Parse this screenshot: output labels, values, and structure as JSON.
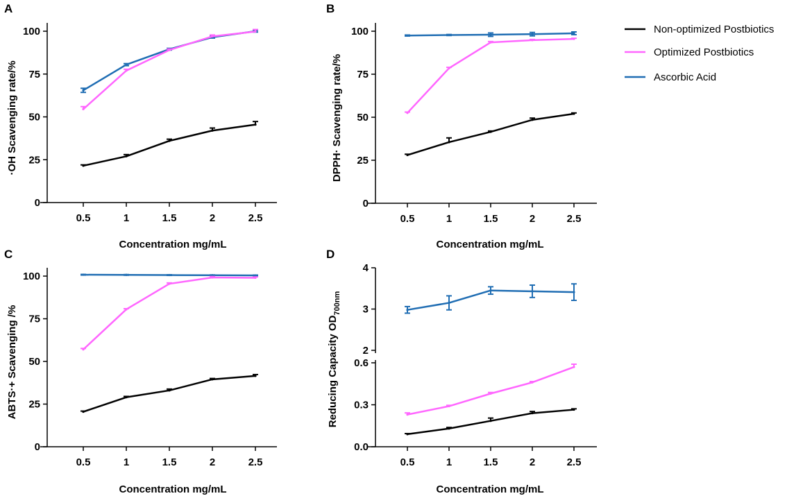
{
  "colors": {
    "non_optimized": "#000000",
    "optimized": "#ff66ff",
    "ascorbic": "#1f6db3",
    "axis": "#000000"
  },
  "legend": {
    "non_optimized": "Non-optimized Postbiotics",
    "optimized": "Optimized Postbiotics",
    "ascorbic": "Ascorbic Acid"
  },
  "chart_data": [
    {
      "panel": "A",
      "type": "line",
      "title": "",
      "xlabel": "Concentration mg/mL",
      "ylabel": "·OH Scavenging rate/%",
      "categories": [
        "0.5",
        "1",
        "1.5",
        "2",
        "2.5"
      ],
      "ylim": [
        0,
        100
      ],
      "yticks": [
        0,
        25,
        50,
        75,
        100
      ],
      "series": [
        {
          "name": "Non-optimized Postbiotics",
          "key": "non_optimized",
          "values": [
            21.5,
            27,
            36,
            42,
            45.5
          ],
          "errors": [
            0.5,
            1,
            1,
            1.5,
            1.8
          ]
        },
        {
          "name": "Optimized Postbiotics",
          "key": "optimized",
          "values": [
            54.5,
            77,
            89,
            97,
            99.8
          ],
          "errors": [
            1.5,
            0.8,
            0.6,
            0.8,
            1.2
          ]
        },
        {
          "name": "Ascorbic Acid",
          "key": "ascorbic",
          "values": [
            65.5,
            80.5,
            89.5,
            96.5,
            100
          ],
          "errors": [
            1.2,
            0.6,
            0.5,
            0.5,
            0.5
          ]
        }
      ]
    },
    {
      "panel": "B",
      "type": "line",
      "title": "",
      "xlabel": "Concentration mg/mL",
      "ylabel": "DPPH· Scavenging rate/%",
      "categories": [
        "0.5",
        "1",
        "1.5",
        "2",
        "2.5"
      ],
      "ylim": [
        0,
        100
      ],
      "yticks": [
        0,
        25,
        50,
        75,
        100
      ],
      "series": [
        {
          "name": "Non-optimized Postbiotics",
          "key": "non_optimized",
          "values": [
            28,
            35.5,
            41.5,
            48.5,
            52
          ],
          "errors": [
            0.5,
            2.5,
            0.5,
            1,
            0.5
          ]
        },
        {
          "name": "Optimized Postbiotics",
          "key": "optimized",
          "values": [
            52.5,
            78.5,
            93.5,
            94.8,
            95.5
          ],
          "errors": [
            0.5,
            0.5,
            0.5,
            0.4,
            0.4
          ]
        },
        {
          "name": "Ascorbic Acid",
          "key": "ascorbic",
          "values": [
            97.5,
            97.8,
            98,
            98.3,
            98.8
          ],
          "errors": [
            0.3,
            0.3,
            1,
            1,
            0.8
          ]
        }
      ]
    },
    {
      "panel": "C",
      "type": "line",
      "title": "",
      "xlabel": "Concentration mg/mL",
      "ylabel": "ABTS·+ Scavenging /%",
      "categories": [
        "0.5",
        "1",
        "1.5",
        "2",
        "2.5"
      ],
      "ylim": [
        0,
        100
      ],
      "yticks": [
        0,
        25,
        50,
        75,
        100
      ],
      "series": [
        {
          "name": "Non-optimized Postbiotics",
          "key": "non_optimized",
          "values": [
            20.5,
            29,
            33,
            39.5,
            41.5
          ],
          "errors": [
            0.4,
            0.5,
            0.8,
            0.5,
            0.8
          ]
        },
        {
          "name": "Optimized Postbiotics",
          "key": "optimized",
          "values": [
            57,
            80.5,
            95.5,
            99.2,
            99
          ],
          "errors": [
            0.6,
            0.4,
            0.5,
            0.5,
            0.5
          ]
        },
        {
          "name": "Ascorbic Acid",
          "key": "ascorbic",
          "values": [
            100.8,
            100.7,
            100.6,
            100.5,
            100.4
          ],
          "errors": [
            0.2,
            0.2,
            0.2,
            0.2,
            0.2
          ]
        }
      ]
    },
    {
      "panel": "D",
      "type": "line",
      "title": "",
      "xlabel": "Concentration mg/mL",
      "ylabel_main": "Reducing Capacity OD",
      "ylabel_sub": "700nm",
      "categories": [
        "0.5",
        "1",
        "1.5",
        "2",
        "2.5"
      ],
      "broken_axis": true,
      "upper_ylim": [
        2,
        4
      ],
      "upper_yticks": [
        "2",
        "3",
        "4"
      ],
      "lower_ylim": [
        0,
        0.6
      ],
      "lower_yticks": [
        "0.0",
        "0.3",
        "0.6"
      ],
      "series": [
        {
          "name": "Non-optimized Postbiotics",
          "key": "non_optimized",
          "values": [
            0.09,
            0.13,
            0.185,
            0.24,
            0.265
          ],
          "errors": [
            0.004,
            0.008,
            0.02,
            0.012,
            0.006
          ]
        },
        {
          "name": "Optimized Postbiotics",
          "key": "optimized",
          "values": [
            0.23,
            0.29,
            0.38,
            0.46,
            0.57
          ],
          "errors": [
            0.012,
            0.006,
            0.008,
            0.006,
            0.02
          ]
        },
        {
          "name": "Ascorbic Acid",
          "key": "ascorbic",
          "values": [
            2.98,
            3.15,
            3.45,
            3.43,
            3.41
          ],
          "errors": [
            0.08,
            0.17,
            0.09,
            0.15,
            0.2
          ]
        }
      ]
    }
  ]
}
